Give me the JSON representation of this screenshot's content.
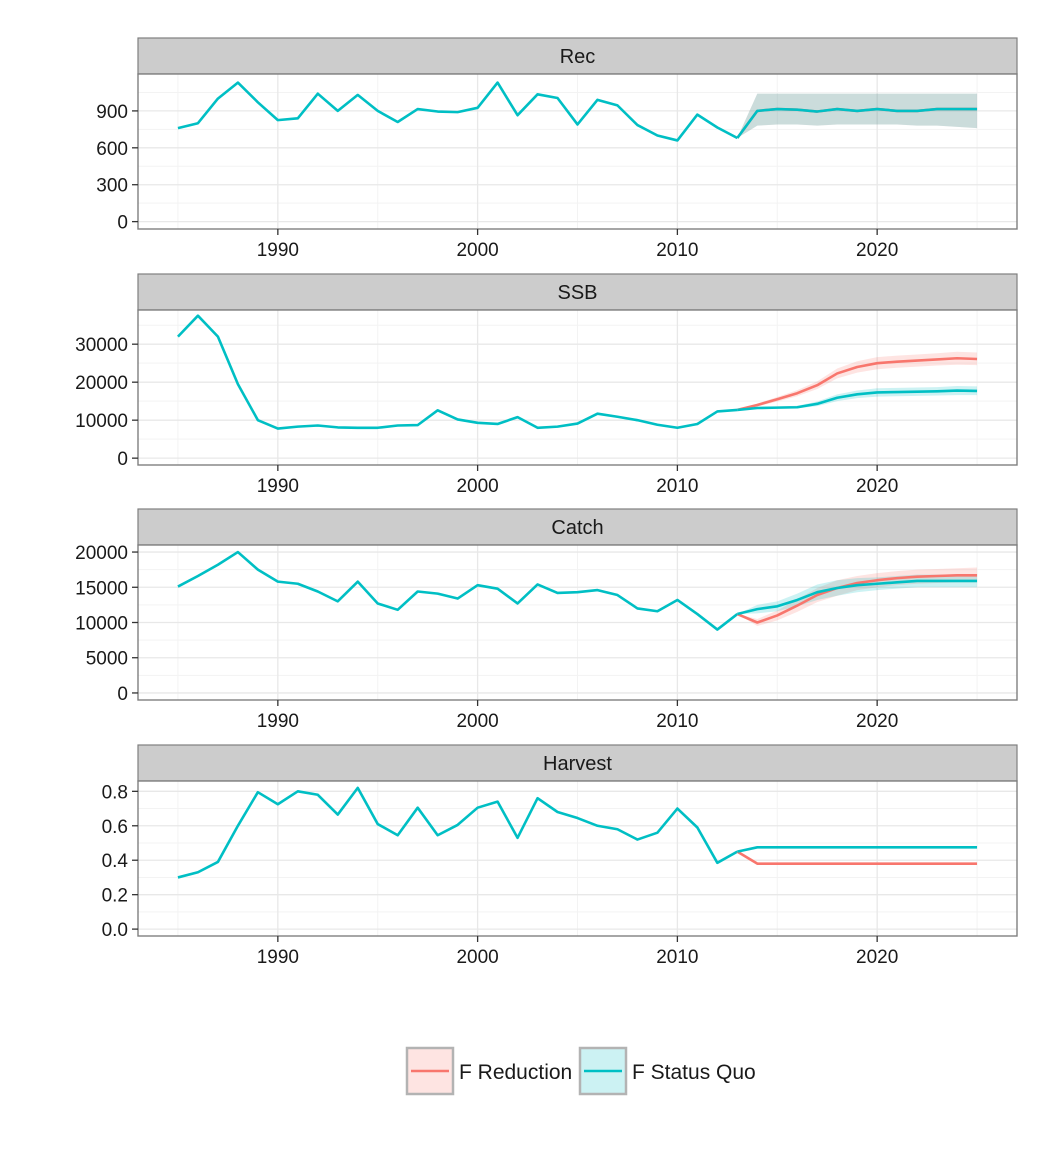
{
  "colors": {
    "f_reduction": "#F8766D",
    "f_status_quo": "#00BFC4",
    "strip_fill": "#CCCCCC",
    "panel_border": "#7F7F7F",
    "grid_major": "#E8E8E8",
    "grid_minor": "#F3F3F3"
  },
  "legend": {
    "position": "bottom",
    "items": [
      {
        "key": "f_reduction",
        "label": "F Reduction"
      },
      {
        "key": "f_status_quo",
        "label": "F Status Quo"
      }
    ]
  },
  "chart_data": {
    "type": "line",
    "layout": "facets-vertical",
    "x": {
      "range": [
        1983,
        2027
      ],
      "ticks": [
        "1990",
        "2000",
        "2010",
        "2020"
      ],
      "tick_values": [
        1990,
        2000,
        2010,
        2020
      ]
    },
    "panels": [
      {
        "id": "rec",
        "label": "Rec",
        "yticks": [
          "0",
          "300",
          "600",
          "900"
        ],
        "ytick_values": [
          0,
          300,
          600,
          900
        ],
        "ylim": [
          -60,
          1200
        ],
        "history": {
          "years": [
            1985,
            1986,
            1987,
            1988,
            1989,
            1990,
            1991,
            1992,
            1993,
            1994,
            1995,
            1996,
            1997,
            1998,
            1999,
            2000,
            2001,
            2002,
            2003,
            2004,
            2005,
            2006,
            2007,
            2008,
            2009,
            2010,
            2011,
            2012,
            2013
          ],
          "values": [
            760,
            800,
            1000,
            1130,
            970,
            825,
            840,
            1040,
            900,
            1030,
            900,
            810,
            915,
            895,
            890,
            925,
            1130,
            865,
            1035,
            1005,
            790,
            990,
            945,
            785,
            700,
            660,
            870,
            765,
            680
          ]
        },
        "projection": {
          "years": [
            2013,
            2014,
            2015,
            2016,
            2017,
            2018,
            2019,
            2020,
            2021,
            2022,
            2023,
            2024,
            2025
          ],
          "f_status_quo": {
            "values": [
              680,
              900,
              915,
              910,
              895,
              915,
              900,
              915,
              900,
              900,
              915,
              915,
              915
            ],
            "lower": [
              680,
              780,
              790,
              790,
              780,
              790,
              790,
              790,
              790,
              780,
              780,
              770,
              760
            ],
            "upper": [
              680,
              1040,
              1040,
              1040,
              1040,
              1040,
              1040,
              1040,
              1040,
              1040,
              1040,
              1040,
              1040
            ]
          },
          "f_reduction": {
            "values": [
              680,
              900,
              915,
              910,
              895,
              915,
              900,
              915,
              900,
              900,
              915,
              915,
              915
            ],
            "lower": [
              680,
              780,
              790,
              790,
              780,
              790,
              790,
              790,
              790,
              780,
              780,
              770,
              760
            ],
            "upper": [
              680,
              1040,
              1040,
              1040,
              1040,
              1040,
              1040,
              1040,
              1040,
              1040,
              1040,
              1040,
              1040
            ]
          }
        }
      },
      {
        "id": "ssb",
        "label": "SSB",
        "yticks": [
          "0",
          "10000",
          "20000",
          "30000"
        ],
        "ytick_values": [
          0,
          10000,
          20000,
          30000
        ],
        "ylim": [
          -1800,
          39000
        ],
        "history": {
          "years": [
            1985,
            1986,
            1987,
            1988,
            1989,
            1990,
            1991,
            1992,
            1993,
            1994,
            1995,
            1996,
            1997,
            1998,
            1999,
            2000,
            2001,
            2002,
            2003,
            2004,
            2005,
            2006,
            2007,
            2008,
            2009,
            2010,
            2011,
            2012,
            2013
          ],
          "values": [
            32000,
            37500,
            32000,
            19500,
            10000,
            7800,
            8300,
            8600,
            8100,
            8000,
            8000,
            8600,
            8700,
            12600,
            10200,
            9300,
            9000,
            10800,
            8000,
            8300,
            9100,
            11700,
            10900,
            10000,
            8800,
            8000,
            9000,
            12300,
            12700
          ]
        },
        "projection": {
          "years": [
            2013,
            2014,
            2015,
            2016,
            2017,
            2018,
            2019,
            2020,
            2021,
            2022,
            2023,
            2024,
            2025
          ],
          "f_status_quo": {
            "values": [
              12700,
              13200,
              13300,
              13400,
              14300,
              15900,
              16800,
              17300,
              17400,
              17500,
              17600,
              17800,
              17700
            ],
            "lower": [
              12700,
              12900,
              13000,
              13100,
              13700,
              15000,
              15800,
              16200,
              16300,
              16400,
              16500,
              16600,
              16600
            ],
            "upper": [
              12700,
              13500,
              13600,
              13800,
              14900,
              16800,
              17800,
              18400,
              18500,
              18600,
              18700,
              19000,
              18900
            ]
          },
          "f_reduction": {
            "values": [
              12700,
              14000,
              15500,
              17100,
              19200,
              22300,
              24000,
              25000,
              25400,
              25700,
              26000,
              26300,
              26100
            ],
            "lower": [
              12700,
              13600,
              14900,
              16300,
              18200,
              21000,
              22500,
              23400,
              23800,
              24100,
              24400,
              24600,
              24500
            ],
            "upper": [
              12700,
              14400,
              16100,
              17900,
              20200,
              23600,
              25500,
              26600,
              27000,
              27300,
              27600,
              28000,
              27800
            ]
          }
        }
      },
      {
        "id": "catch",
        "label": "Catch",
        "yticks": [
          "0",
          "5000",
          "10000",
          "15000",
          "20000"
        ],
        "ytick_values": [
          0,
          5000,
          10000,
          15000,
          20000
        ],
        "ylim": [
          -1000,
          21000
        ],
        "history": {
          "years": [
            1985,
            1986,
            1987,
            1988,
            1989,
            1990,
            1991,
            1992,
            1993,
            1994,
            1995,
            1996,
            1997,
            1998,
            1999,
            2000,
            2001,
            2002,
            2003,
            2004,
            2005,
            2006,
            2007,
            2008,
            2009,
            2010,
            2011,
            2012,
            2013
          ],
          "values": [
            15100,
            16600,
            18200,
            20000,
            17500,
            15800,
            15500,
            14400,
            13000,
            15800,
            12700,
            11800,
            14400,
            14100,
            13400,
            15300,
            14800,
            12700,
            15400,
            14200,
            14300,
            14600,
            13900,
            12000,
            11600,
            13200,
            11200,
            9000,
            11200
          ]
        },
        "projection": {
          "years": [
            2013,
            2014,
            2015,
            2016,
            2017,
            2018,
            2019,
            2020,
            2021,
            2022,
            2023,
            2024,
            2025
          ],
          "f_status_quo": {
            "values": [
              11200,
              11900,
              12300,
              13200,
              14300,
              14900,
              15300,
              15500,
              15700,
              15900,
              15900,
              15900,
              15900
            ],
            "lower": [
              11200,
              11300,
              11600,
              12300,
              13200,
              13800,
              14300,
              14600,
              14800,
              15000,
              15000,
              15000,
              15000
            ],
            "upper": [
              11200,
              12500,
              13000,
              14100,
              15400,
              16000,
              16300,
              16400,
              16600,
              16800,
              16800,
              16800,
              16800
            ]
          },
          "f_reduction": {
            "values": [
              11200,
              10000,
              11000,
              12400,
              13900,
              14900,
              15600,
              16000,
              16300,
              16500,
              16600,
              16700,
              16700
            ],
            "lower": [
              11200,
              9500,
              10300,
              11500,
              12900,
              13800,
              14600,
              15000,
              15300,
              15500,
              15600,
              15700,
              15700
            ],
            "upper": [
              11200,
              10500,
              11700,
              13300,
              14900,
              16000,
              16600,
              17000,
              17300,
              17500,
              17600,
              17700,
              17800
            ]
          }
        }
      },
      {
        "id": "harvest",
        "label": "Harvest",
        "yticks": [
          "0.0",
          "0.2",
          "0.4",
          "0.6",
          "0.8"
        ],
        "ytick_values": [
          0,
          0.2,
          0.4,
          0.6,
          0.8
        ],
        "ylim": [
          -0.04,
          0.86
        ],
        "history": {
          "years": [
            1985,
            1986,
            1987,
            1988,
            1989,
            1990,
            1991,
            1992,
            1993,
            1994,
            1995,
            1996,
            1997,
            1998,
            1999,
            2000,
            2001,
            2002,
            2003,
            2004,
            2005,
            2006,
            2007,
            2008,
            2009,
            2010,
            2011,
            2012,
            2013
          ],
          "values": [
            0.3,
            0.33,
            0.39,
            0.6,
            0.795,
            0.725,
            0.8,
            0.78,
            0.665,
            0.82,
            0.61,
            0.545,
            0.705,
            0.545,
            0.605,
            0.705,
            0.74,
            0.53,
            0.76,
            0.68,
            0.645,
            0.6,
            0.58,
            0.52,
            0.56,
            0.7,
            0.59,
            0.385,
            0.45
          ]
        },
        "projection": {
          "years": [
            2013,
            2014,
            2015,
            2016,
            2017,
            2018,
            2019,
            2020,
            2021,
            2022,
            2023,
            2024,
            2025
          ],
          "f_status_quo": {
            "values": [
              0.45,
              0.475,
              0.475,
              0.475,
              0.475,
              0.475,
              0.475,
              0.475,
              0.475,
              0.475,
              0.475,
              0.475,
              0.475
            ]
          },
          "f_reduction": {
            "values": [
              0.45,
              0.38,
              0.38,
              0.38,
              0.38,
              0.38,
              0.38,
              0.38,
              0.38,
              0.38,
              0.38,
              0.38,
              0.38
            ]
          }
        }
      }
    ]
  }
}
